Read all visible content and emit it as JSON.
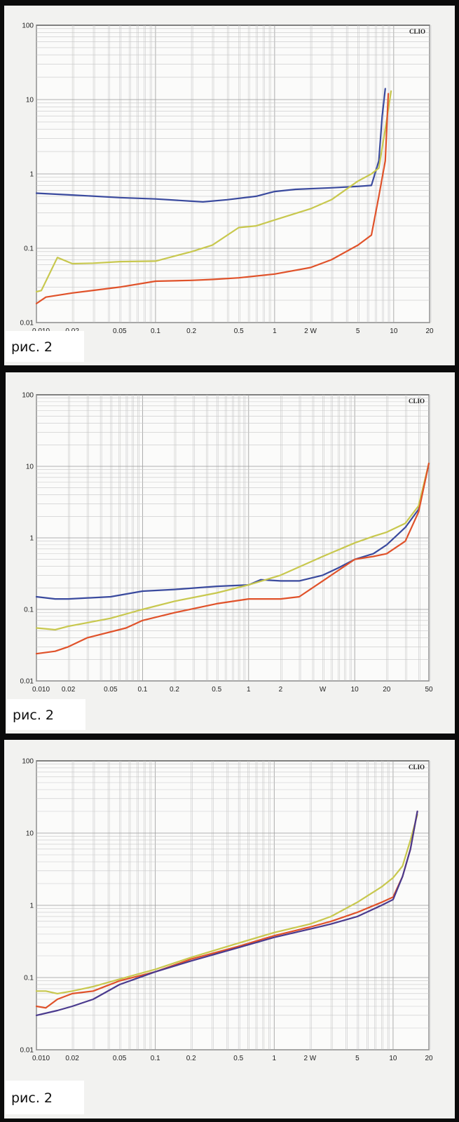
{
  "chart_data": [
    {
      "type": "line",
      "brand": "CLIO",
      "caption": "рис. 2",
      "x_scale": "log",
      "y_scale": "log",
      "xlim": [
        0.01,
        20
      ],
      "ylim": [
        0.01,
        100
      ],
      "x_ticks": [
        {
          "value": 0.01,
          "label": "0.010"
        },
        {
          "value": 0.02,
          "label": "0.02"
        },
        {
          "value": 0.05,
          "label": "0.05"
        },
        {
          "value": 0.1,
          "label": "0.1"
        },
        {
          "value": 0.2,
          "label": "0.2"
        },
        {
          "value": 0.5,
          "label": "0.5"
        },
        {
          "value": 1,
          "label": "1"
        },
        {
          "value": 2,
          "label": "2 W"
        },
        {
          "value": 5,
          "label": "5"
        },
        {
          "value": 10,
          "label": "10"
        },
        {
          "value": 20,
          "label": "20"
        }
      ],
      "y_ticks": [
        {
          "value": 0.01,
          "label": "0.01"
        },
        {
          "value": 0.1,
          "label": "0.1"
        },
        {
          "value": 1,
          "label": "1"
        },
        {
          "value": 10,
          "label": "10"
        },
        {
          "value": 100,
          "label": "100"
        }
      ],
      "grid": true,
      "series": [
        {
          "color": "#3a4a9e",
          "x": [
            0.01,
            0.02,
            0.05,
            0.1,
            0.2,
            0.25,
            0.4,
            0.7,
            1,
            1.5,
            3,
            5,
            6.5,
            7.5,
            8,
            8.5
          ],
          "y": [
            0.55,
            0.52,
            0.48,
            0.46,
            0.43,
            0.42,
            0.45,
            0.5,
            0.58,
            0.62,
            0.65,
            0.68,
            0.7,
            1.5,
            6,
            14
          ]
        },
        {
          "color": "#c8c84e",
          "x": [
            0.01,
            0.011,
            0.015,
            0.02,
            0.03,
            0.05,
            0.1,
            0.2,
            0.3,
            0.5,
            0.7,
            1,
            2,
            3,
            5,
            6.5,
            7.5,
            8.5,
            9.5
          ],
          "y": [
            0.026,
            0.027,
            0.075,
            0.062,
            0.063,
            0.066,
            0.067,
            0.09,
            0.11,
            0.19,
            0.2,
            0.24,
            0.34,
            0.45,
            0.8,
            1.0,
            1.2,
            4,
            13
          ]
        },
        {
          "color": "#e0522a",
          "x": [
            0.01,
            0.012,
            0.02,
            0.05,
            0.1,
            0.2,
            0.3,
            0.5,
            1,
            2,
            3,
            5,
            6.5,
            7.5,
            8.5,
            9
          ],
          "y": [
            0.018,
            0.022,
            0.025,
            0.03,
            0.036,
            0.037,
            0.038,
            0.04,
            0.045,
            0.055,
            0.07,
            0.11,
            0.15,
            0.5,
            1.5,
            12
          ]
        }
      ]
    },
    {
      "type": "line",
      "brand": "CLIO",
      "caption": "рис. 2",
      "x_scale": "log",
      "y_scale": "log",
      "xlim": [
        0.01,
        50
      ],
      "ylim": [
        0.01,
        100
      ],
      "x_ticks": [
        {
          "value": 0.01,
          "label": "0.010"
        },
        {
          "value": 0.02,
          "label": "0.02"
        },
        {
          "value": 0.05,
          "label": "0.05"
        },
        {
          "value": 0.1,
          "label": "0.1"
        },
        {
          "value": 0.2,
          "label": "0.2"
        },
        {
          "value": 0.5,
          "label": "0.5"
        },
        {
          "value": 1,
          "label": "1"
        },
        {
          "value": 2,
          "label": "2"
        },
        {
          "value": 5,
          "label": "W"
        },
        {
          "value": 10,
          "label": "10"
        },
        {
          "value": 20,
          "label": "20"
        },
        {
          "value": 50,
          "label": "50"
        }
      ],
      "y_ticks": [
        {
          "value": 0.01,
          "label": "0.01"
        },
        {
          "value": 0.1,
          "label": "0.1"
        },
        {
          "value": 1,
          "label": "1"
        },
        {
          "value": 10,
          "label": "10"
        },
        {
          "value": 100,
          "label": "100"
        }
      ],
      "grid": true,
      "series": [
        {
          "color": "#3a4a9e",
          "x": [
            0.01,
            0.015,
            0.02,
            0.05,
            0.1,
            0.2,
            0.5,
            1,
            1.3,
            2,
            3,
            5,
            7,
            10,
            15,
            20,
            30,
            40,
            50
          ],
          "y": [
            0.15,
            0.14,
            0.14,
            0.15,
            0.18,
            0.19,
            0.21,
            0.22,
            0.26,
            0.25,
            0.25,
            0.3,
            0.38,
            0.5,
            0.6,
            0.8,
            1.4,
            2.5,
            11
          ]
        },
        {
          "color": "#c8c84e",
          "x": [
            0.01,
            0.015,
            0.02,
            0.05,
            0.1,
            0.2,
            0.5,
            1,
            2,
            5,
            10,
            15,
            20,
            30,
            40,
            50
          ],
          "y": [
            0.055,
            0.052,
            0.058,
            0.075,
            0.1,
            0.13,
            0.17,
            0.22,
            0.3,
            0.55,
            0.85,
            1.05,
            1.2,
            1.6,
            2.8,
            11
          ]
        },
        {
          "color": "#e0522a",
          "x": [
            0.01,
            0.015,
            0.02,
            0.03,
            0.07,
            0.1,
            0.2,
            0.5,
            1,
            2,
            3,
            5,
            7,
            10,
            15,
            20,
            30,
            40,
            50
          ],
          "y": [
            0.024,
            0.026,
            0.03,
            0.04,
            0.055,
            0.07,
            0.09,
            0.12,
            0.14,
            0.14,
            0.15,
            0.25,
            0.35,
            0.5,
            0.55,
            0.6,
            0.9,
            2.3,
            11
          ]
        }
      ]
    },
    {
      "type": "line",
      "brand": "CLIO",
      "caption": "рис. 2",
      "x_scale": "log",
      "y_scale": "log",
      "xlim": [
        0.01,
        20
      ],
      "ylim": [
        0.01,
        100
      ],
      "x_ticks": [
        {
          "value": 0.01,
          "label": "0.010"
        },
        {
          "value": 0.02,
          "label": "0.02"
        },
        {
          "value": 0.05,
          "label": "0.05"
        },
        {
          "value": 0.1,
          "label": "0.1"
        },
        {
          "value": 0.2,
          "label": "0.2"
        },
        {
          "value": 0.5,
          "label": "0.5"
        },
        {
          "value": 1,
          "label": "1"
        },
        {
          "value": 2,
          "label": "2 W"
        },
        {
          "value": 5,
          "label": "5"
        },
        {
          "value": 10,
          "label": "10"
        },
        {
          "value": 20,
          "label": "20"
        }
      ],
      "y_ticks": [
        {
          "value": 0.01,
          "label": "0.01"
        },
        {
          "value": 0.1,
          "label": "0.1"
        },
        {
          "value": 1,
          "label": "1"
        },
        {
          "value": 10,
          "label": "10"
        },
        {
          "value": 100,
          "label": "100"
        }
      ],
      "grid": true,
      "series": [
        {
          "color": "#c8c84e",
          "x": [
            0.01,
            0.012,
            0.015,
            0.02,
            0.03,
            0.05,
            0.1,
            0.2,
            0.5,
            1,
            2,
            3,
            5,
            8,
            10,
            12,
            14,
            16
          ],
          "y": [
            0.065,
            0.065,
            0.06,
            0.065,
            0.075,
            0.095,
            0.13,
            0.19,
            0.3,
            0.42,
            0.55,
            0.7,
            1.1,
            1.8,
            2.4,
            3.5,
            8,
            18
          ]
        },
        {
          "color": "#e0522a",
          "x": [
            0.01,
            0.012,
            0.015,
            0.02,
            0.03,
            0.05,
            0.1,
            0.2,
            0.5,
            1,
            2,
            3,
            5,
            8,
            10,
            12,
            14,
            16
          ],
          "y": [
            0.04,
            0.038,
            0.05,
            0.06,
            0.065,
            0.09,
            0.12,
            0.18,
            0.27,
            0.38,
            0.5,
            0.6,
            0.8,
            1.1,
            1.3,
            2.5,
            6,
            20
          ]
        },
        {
          "color": "#4a3a8e",
          "x": [
            0.01,
            0.015,
            0.02,
            0.03,
            0.05,
            0.1,
            0.2,
            0.5,
            1,
            2,
            3,
            5,
            8,
            10,
            12,
            14,
            16
          ],
          "y": [
            0.03,
            0.035,
            0.04,
            0.05,
            0.08,
            0.12,
            0.17,
            0.26,
            0.36,
            0.47,
            0.55,
            0.7,
            1.0,
            1.2,
            2.5,
            6,
            20
          ]
        }
      ]
    }
  ]
}
